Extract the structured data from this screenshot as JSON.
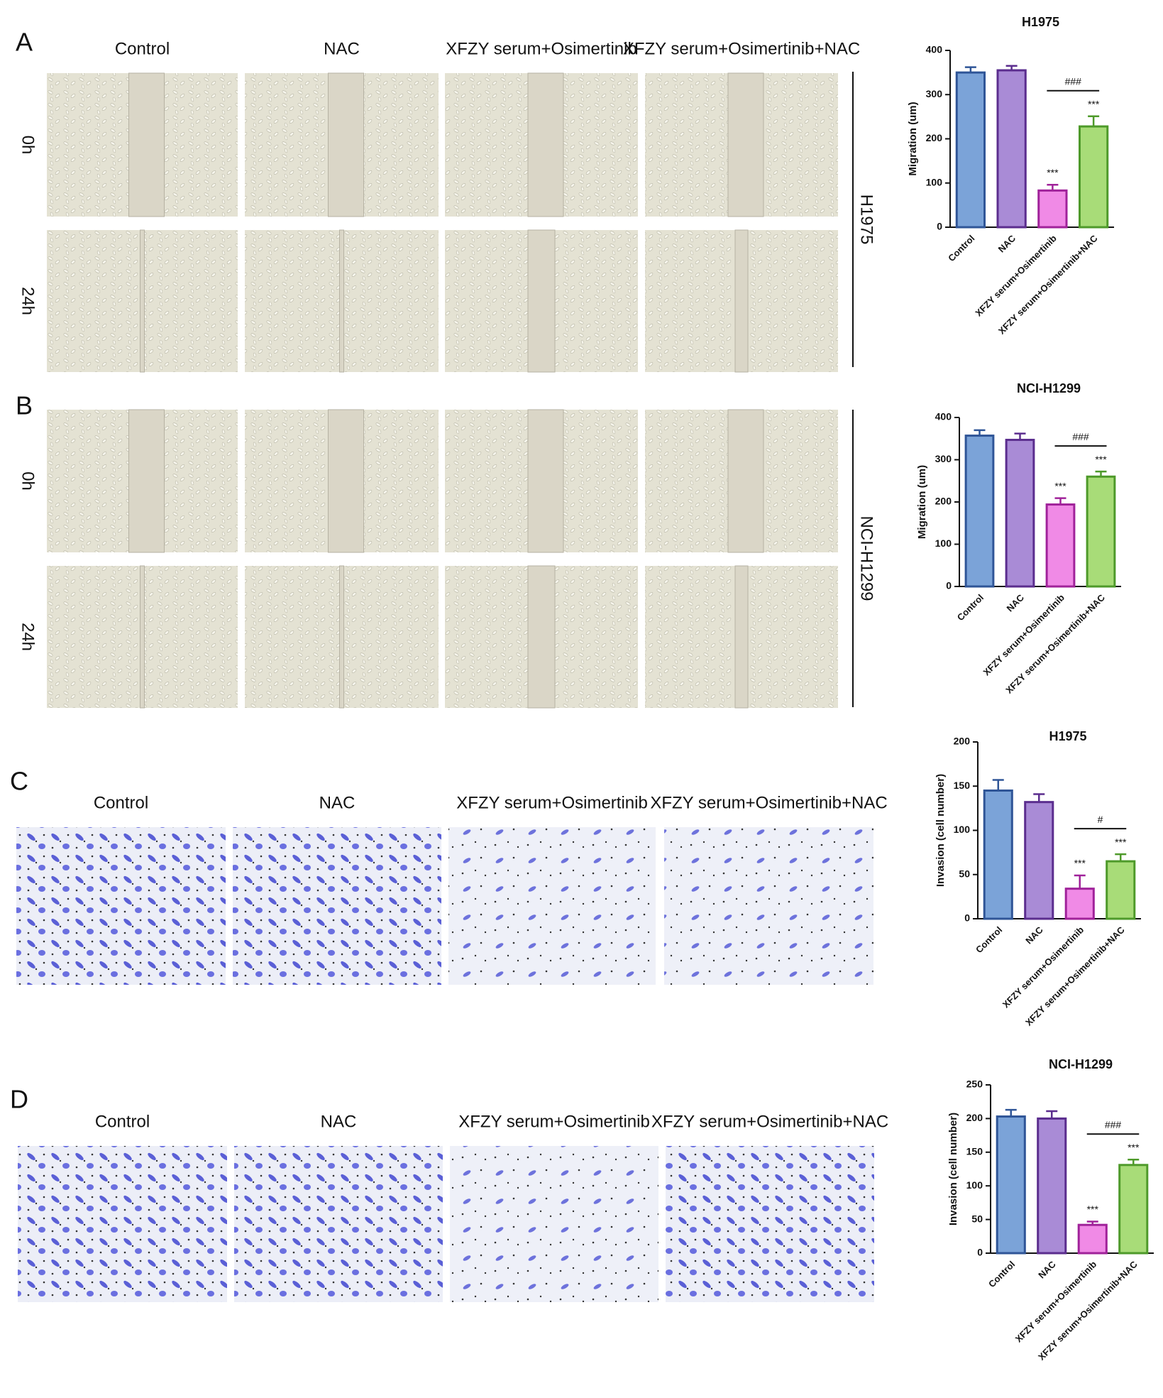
{
  "panels": [
    {
      "label": "A",
      "columns": [
        "Control",
        "NAC",
        "XFZY serum+Osimertinib",
        "XFZY serum+Osimertinib+NAC"
      ],
      "rows": [
        "0h",
        "24h"
      ],
      "cell_line": "H1975"
    },
    {
      "label": "B",
      "rows": [
        "0h",
        "24h"
      ],
      "cell_line": "NCI-H1299"
    },
    {
      "label": "C",
      "columns": [
        "Control",
        "NAC",
        "XFZY serum+Osimertinib",
        "XFZY serum+Osimertinib+NAC"
      ]
    },
    {
      "label": "D",
      "columns": [
        "Control",
        "NAC",
        "XFZY serum+Osimertinib",
        "XFZY serum+Osimertinib+NAC"
      ]
    }
  ],
  "chart_data": [
    {
      "type": "bar",
      "title": "H1975",
      "y_label": "Migration (um)",
      "categories": [
        "Control",
        "NAC",
        "XFZY serum+Osimertinib",
        "XFZY serum+Osimertinib+NAC"
      ],
      "values": [
        350,
        355,
        83,
        228
      ],
      "errors": [
        12,
        10,
        13,
        23
      ],
      "colors": [
        "#7ba3d8",
        "#a98bd6",
        "#f08ae6",
        "#a8dc78"
      ],
      "edge_colors": [
        "#2f5597",
        "#5b2d8e",
        "#a0229a",
        "#4e9a2a"
      ],
      "ylim": [
        0,
        400
      ],
      "yticks": [
        0,
        100,
        200,
        300,
        400
      ],
      "annotations": [
        {
          "text": "***",
          "category": "XFZY serum+Osimertinib"
        },
        {
          "text": "***",
          "category": "XFZY serum+Osimertinib+NAC"
        }
      ],
      "bracket": {
        "text": "###",
        "from": "XFZY serum+Osimertinib",
        "to": "XFZY serum+Osimertinib+NAC"
      }
    },
    {
      "type": "bar",
      "title": "NCI-H1299",
      "y_label": "Migration (um)",
      "categories": [
        "Control",
        "NAC",
        "XFZY serum+Osimertinib",
        "XFZY serum+Osimertinib+NAC"
      ],
      "values": [
        357,
        347,
        194,
        260
      ],
      "errors": [
        13,
        15,
        15,
        12
      ],
      "colors": [
        "#7ba3d8",
        "#a98bd6",
        "#f08ae6",
        "#a8dc78"
      ],
      "edge_colors": [
        "#2f5597",
        "#5b2d8e",
        "#a0229a",
        "#4e9a2a"
      ],
      "ylim": [
        0,
        400
      ],
      "yticks": [
        0,
        100,
        200,
        300,
        400
      ],
      "annotations": [
        {
          "text": "***",
          "category": "XFZY serum+Osimertinib"
        },
        {
          "text": "***",
          "category": "XFZY serum+Osimertinib+NAC"
        }
      ],
      "bracket": {
        "text": "###",
        "from": "XFZY serum+Osimertinib",
        "to": "XFZY serum+Osimertinib+NAC"
      }
    },
    {
      "type": "bar",
      "title": "H1975",
      "y_label": "Invasion (cell number)",
      "categories": [
        "Control",
        "NAC",
        "XFZY serum+Osimertinib",
        "XFZY serum+Osimertinib+NAC"
      ],
      "values": [
        145,
        132,
        34,
        65
      ],
      "errors": [
        12,
        9,
        15,
        8
      ],
      "colors": [
        "#7ba3d8",
        "#a98bd6",
        "#f08ae6",
        "#a8dc78"
      ],
      "edge_colors": [
        "#2f5597",
        "#5b2d8e",
        "#a0229a",
        "#4e9a2a"
      ],
      "ylim": [
        0,
        200
      ],
      "yticks": [
        0,
        50,
        100,
        150,
        200
      ],
      "annotations": [
        {
          "text": "***",
          "category": "XFZY serum+Osimertinib"
        },
        {
          "text": "***",
          "category": "XFZY serum+Osimertinib+NAC"
        }
      ],
      "bracket": {
        "text": "#",
        "from": "XFZY serum+Osimertinib",
        "to": "XFZY serum+Osimertinib+NAC"
      }
    },
    {
      "type": "bar",
      "title": "NCI-H1299",
      "y_label": "Invasion (cell number)",
      "categories": [
        "Control",
        "NAC",
        "XFZY serum+Osimertinib",
        "XFZY serum+Osimertinib+NAC"
      ],
      "values": [
        203,
        200,
        42,
        131
      ],
      "errors": [
        10,
        11,
        5,
        8
      ],
      "colors": [
        "#7ba3d8",
        "#a98bd6",
        "#f08ae6",
        "#a8dc78"
      ],
      "edge_colors": [
        "#2f5597",
        "#5b2d8e",
        "#a0229a",
        "#4e9a2a"
      ],
      "ylim": [
        0,
        250
      ],
      "yticks": [
        0,
        50,
        100,
        150,
        200,
        250
      ],
      "annotations": [
        {
          "text": "***",
          "category": "XFZY serum+Osimertinib"
        },
        {
          "text": "***",
          "category": "XFZY serum+Osimertinib+NAC"
        }
      ],
      "bracket": {
        "text": "###",
        "from": "XFZY serum+Osimertinib",
        "to": "XFZY serum+Osimertinib+NAC"
      }
    }
  ]
}
